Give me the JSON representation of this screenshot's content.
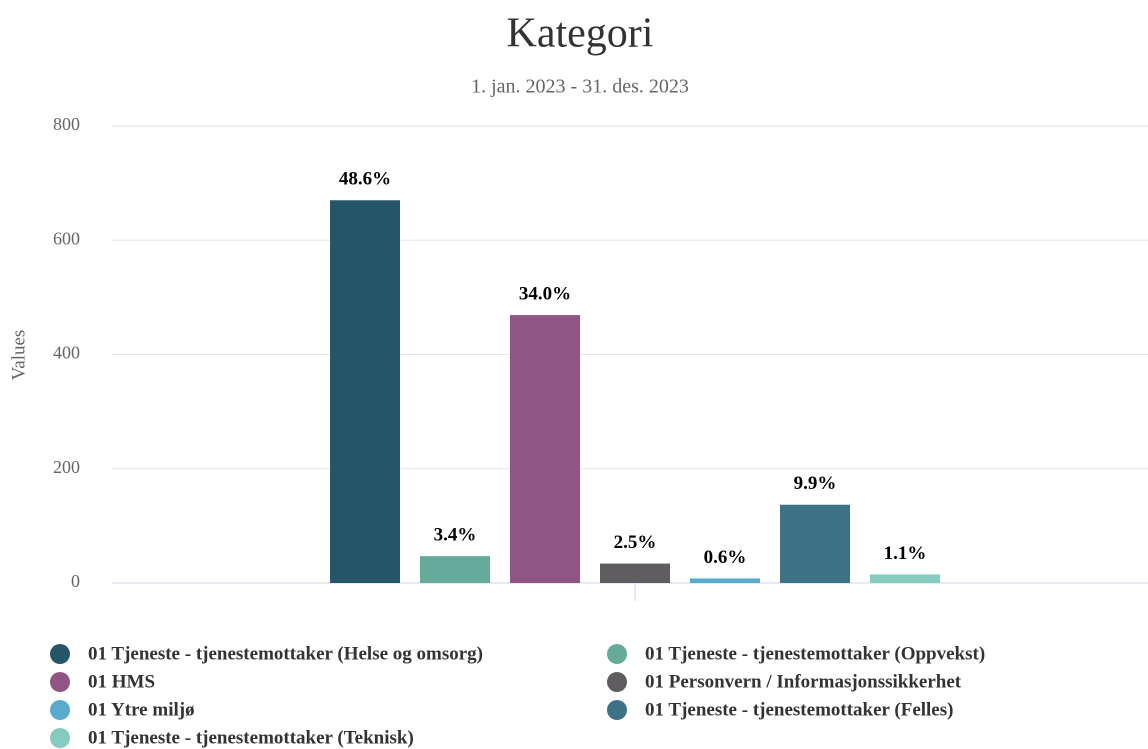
{
  "chart_data": {
    "type": "bar",
    "title": "Kategori",
    "subtitle": "1. jan. 2023 - 31. des. 2023",
    "y_label": "Values",
    "categories": [
      null
    ],
    "series": [
      {
        "name": "01 Tjeneste - tjenestemottaker (Helse og omsorg)",
        "color": "#245569",
        "values": [
          670
        ],
        "value_labels": [
          "48.6%"
        ]
      },
      {
        "name": "01 Tjeneste - tjenestemottaker (Oppvekst)",
        "color": "#66aa9a",
        "values": [
          47
        ],
        "value_labels": [
          "3.4%"
        ]
      },
      {
        "name": "01 HMS",
        "color": "#8e5585",
        "values": [
          469
        ],
        "value_labels": [
          "34.0%"
        ]
      },
      {
        "name": "01 Personvern / Informasjonssikkerhet",
        "color": "#5f5d5f",
        "values": [
          34
        ],
        "value_labels": [
          "2.5%"
        ]
      },
      {
        "name": "01 Ytre miljø",
        "color": "#5aaacd",
        "values": [
          8
        ],
        "value_labels": [
          "0.6%"
        ]
      },
      {
        "name": "01 Tjeneste - tjenestemottaker (Felles)",
        "color": "#3e7286",
        "values": [
          137
        ],
        "value_labels": [
          "9.9%"
        ]
      },
      {
        "name": "01 Tjeneste - tjenestemottaker (Teknisk)",
        "color": "#85cbbf",
        "values": [
          15
        ],
        "value_labels": [
          "1.1%"
        ]
      }
    ],
    "ylim": [
      0,
      800
    ],
    "yticks": [
      0,
      200,
      400,
      600,
      800
    ],
    "grid": true
  }
}
